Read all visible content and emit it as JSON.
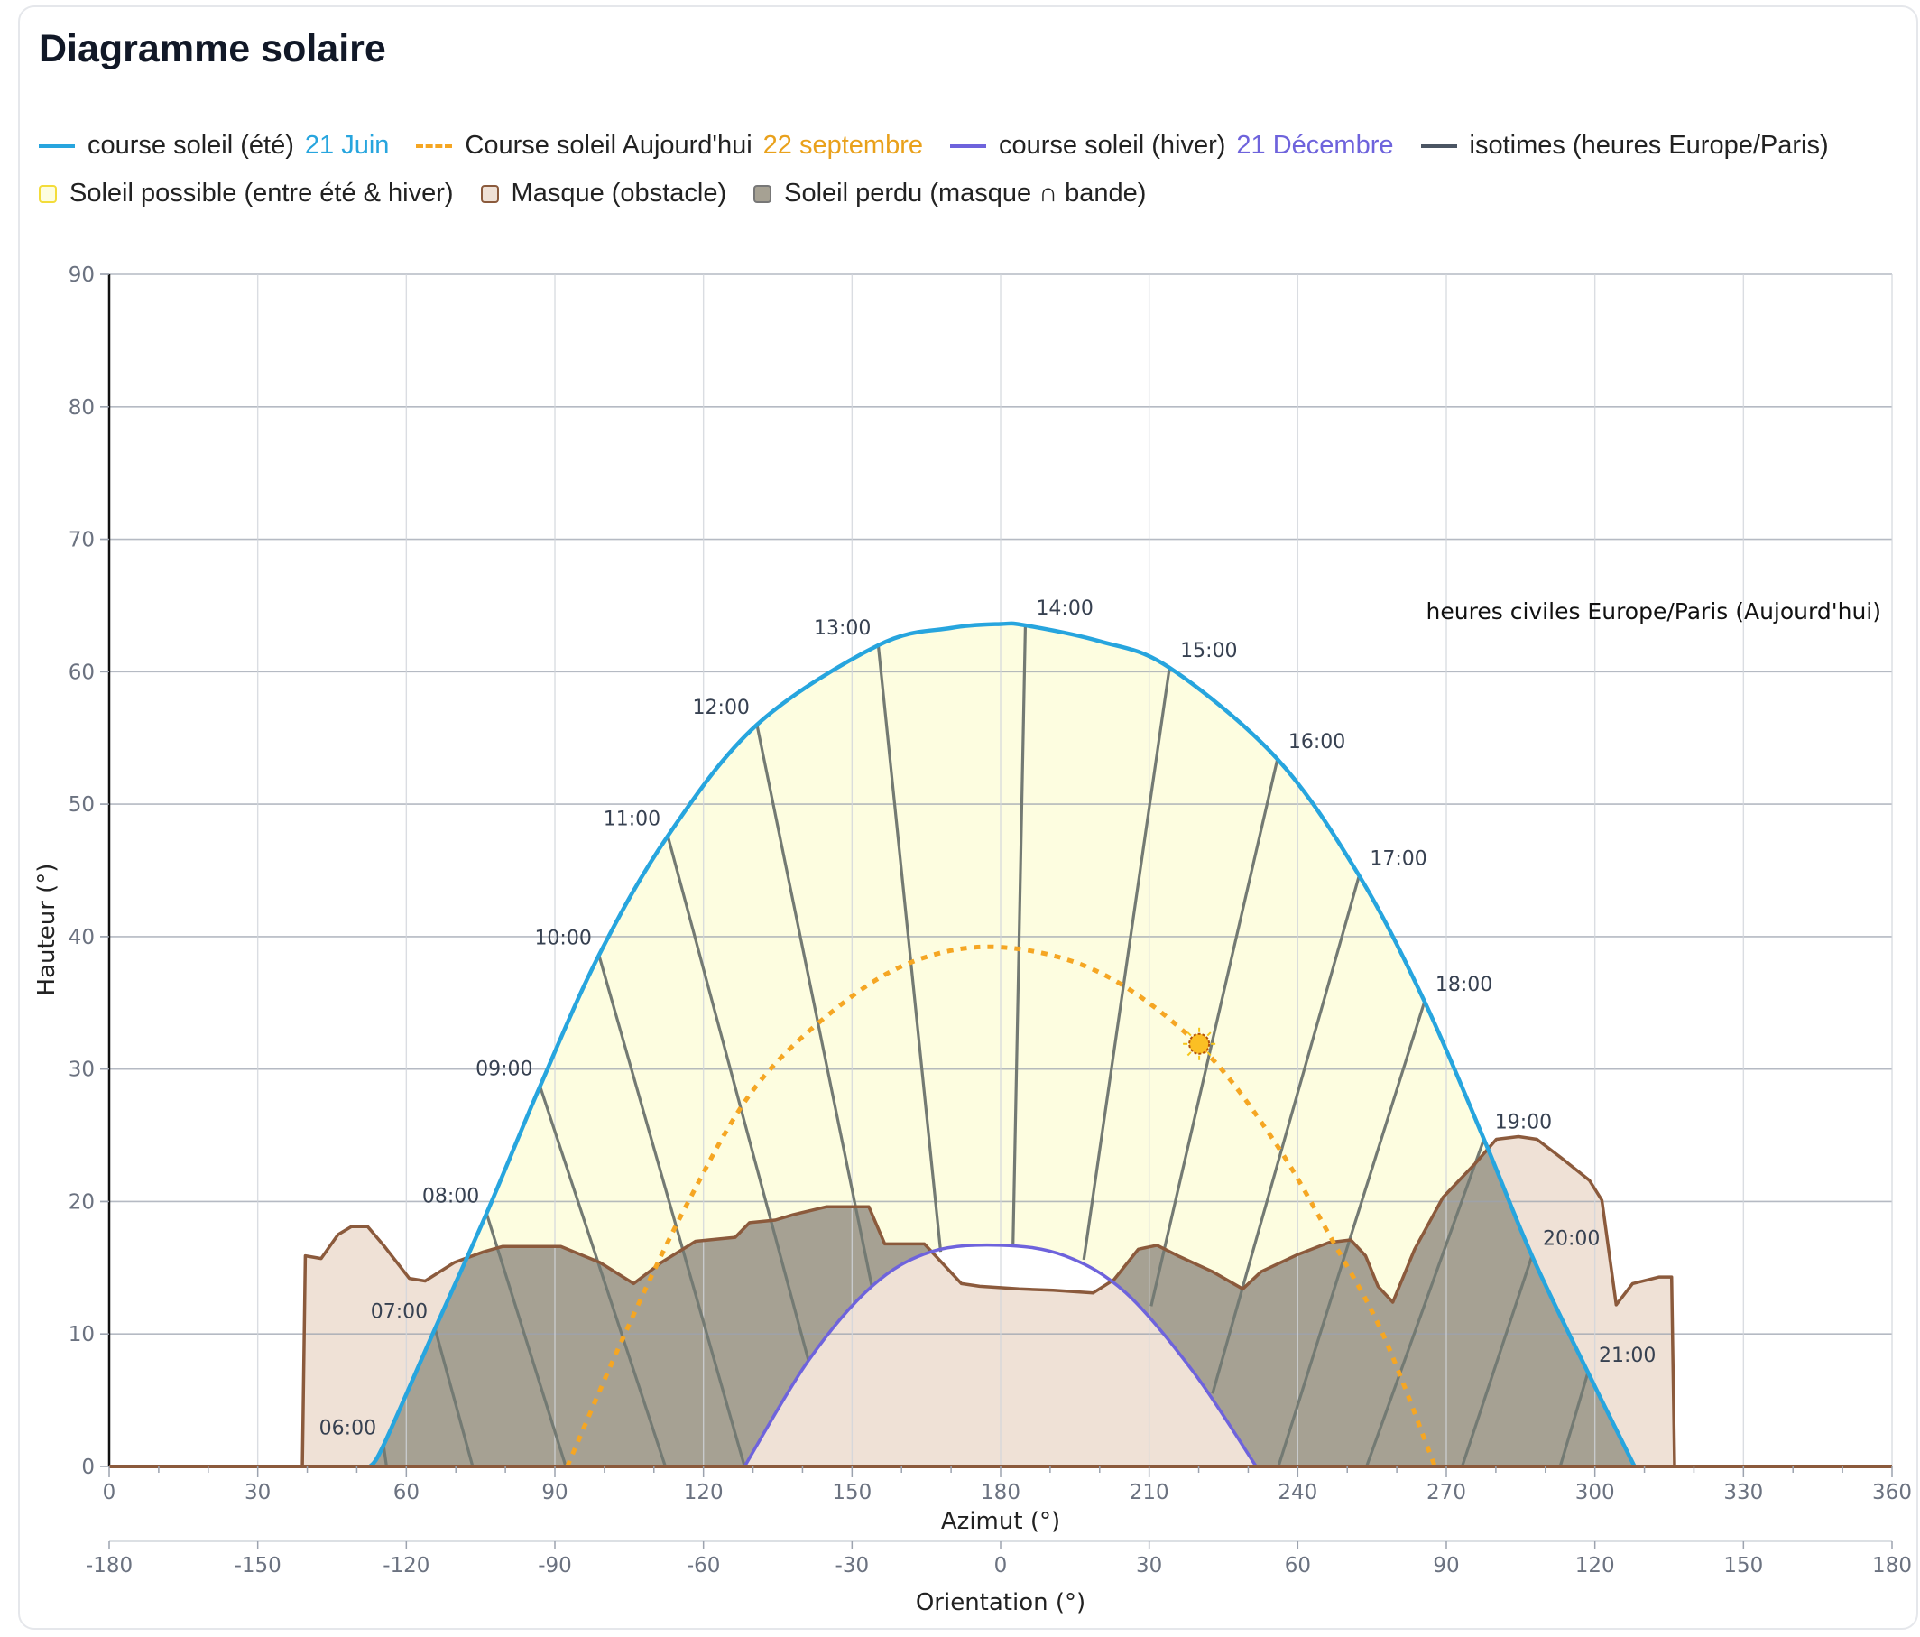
{
  "title": "Diagramme solaire",
  "legend": {
    "summer": {
      "label": "course soleil (été)",
      "date": "21 Juin",
      "color": "#27a5de"
    },
    "today": {
      "label": "Course soleil Aujourd'hui",
      "date": "22 septembre",
      "color": "#f5a623"
    },
    "winter": {
      "label": "course soleil (hiver)",
      "date": "21 Décembre",
      "color": "#6e63dc"
    },
    "isotimes": {
      "label": "isotimes (heures Europe/Paris)",
      "color": "#4b5563"
    },
    "band": {
      "label": "Soleil possible (entre été & hiver)",
      "color": "#fdfde0"
    },
    "mask": {
      "label": "Masque (obstacle)",
      "color": "#efe1d6"
    },
    "lost": {
      "label": "Soleil perdu (masque ∩ bande)",
      "color": "#a6a193"
    }
  },
  "chart_data": {
    "type": "line",
    "title": "Diagramme solaire",
    "xlabel": "Azimut (°)",
    "x2label": "Orientation (°)",
    "ylabel": "Hauteur (°)",
    "xlim": [
      0,
      360
    ],
    "x2lim": [
      -180,
      180
    ],
    "ylim": [
      0,
      90
    ],
    "xticks": [
      0,
      30,
      60,
      90,
      120,
      150,
      180,
      210,
      240,
      270,
      300,
      330,
      360
    ],
    "x2ticks": [
      -180,
      -150,
      -120,
      -90,
      -60,
      -30,
      0,
      30,
      60,
      90,
      120,
      150,
      180
    ],
    "yticks": [
      0,
      10,
      20,
      30,
      40,
      50,
      60,
      70,
      80,
      90
    ],
    "grid": true,
    "legend_position": "top",
    "annotation": "heures civiles Europe/Paris (Aujourd'hui)",
    "series": [
      {
        "name": "course soleil (été) 21 Juin",
        "points": [
          [
            52.7,
            0
          ],
          [
            55.4,
            1.6
          ],
          [
            65.8,
            10.4
          ],
          [
            76.2,
            19.1
          ],
          [
            87,
            28.7
          ],
          [
            98.9,
            38.6
          ],
          [
            112.8,
            47.6
          ],
          [
            130.8,
            56
          ],
          [
            155.3,
            62
          ],
          [
            170,
            63.3
          ],
          [
            180,
            63.6
          ],
          [
            185,
            63.5
          ],
          [
            200,
            62.3
          ],
          [
            214.1,
            60.3
          ],
          [
            235.9,
            53.4
          ],
          [
            252.4,
            44.6
          ],
          [
            265.6,
            35.1
          ],
          [
            277.6,
            24.7
          ],
          [
            287.3,
            15.9
          ],
          [
            298.6,
            7.1
          ],
          [
            308,
            0
          ]
        ]
      },
      {
        "name": "Course soleil Aujourd'hui 22 septembre",
        "points": [
          [
            92.5,
            0
          ],
          [
            104,
            9.9
          ],
          [
            116.4,
            19.6
          ],
          [
            130,
            28.4
          ],
          [
            146.2,
            34.4
          ],
          [
            162.2,
            38.1
          ],
          [
            180,
            39.2
          ],
          [
            200.5,
            37.2
          ],
          [
            220.3,
            31.7
          ],
          [
            235,
            24.7
          ],
          [
            247.4,
            16.8
          ],
          [
            257.3,
            9.9
          ],
          [
            267.7,
            0
          ]
        ]
      },
      {
        "name": "course soleil (hiver) 21 Décembre",
        "points": [
          [
            128.3,
            0
          ],
          [
            141.2,
            8
          ],
          [
            154,
            13.6
          ],
          [
            165.9,
            16.2
          ],
          [
            180,
            16.7
          ],
          [
            193,
            15.9
          ],
          [
            205.3,
            13.1
          ],
          [
            219,
            7.1
          ],
          [
            231.6,
            0
          ]
        ]
      },
      {
        "name": "Masque (obstacle)",
        "points": [
          [
            0,
            0
          ],
          [
            39,
            0
          ],
          [
            39.6,
            15.9
          ],
          [
            42.8,
            15.7
          ],
          [
            46.2,
            17.5
          ],
          [
            48.9,
            18.1
          ],
          [
            52.2,
            18.1
          ],
          [
            55.6,
            16.6
          ],
          [
            60.6,
            14.2
          ],
          [
            63.8,
            14
          ],
          [
            69.7,
            15.4
          ],
          [
            75.6,
            16.2
          ],
          [
            79.4,
            16.6
          ],
          [
            91.2,
            16.6
          ],
          [
            99.1,
            15.4
          ],
          [
            105.9,
            13.8
          ],
          [
            111.5,
            15.4
          ],
          [
            118.4,
            17
          ],
          [
            126.4,
            17.3
          ],
          [
            129.3,
            18.4
          ],
          [
            134.5,
            18.6
          ],
          [
            138.1,
            19
          ],
          [
            144.8,
            19.6
          ],
          [
            153.4,
            19.6
          ],
          [
            156.6,
            16.8
          ],
          [
            164.6,
            16.8
          ],
          [
            172.1,
            13.8
          ],
          [
            175.8,
            13.6
          ],
          [
            183.7,
            13.4
          ],
          [
            190.6,
            13.3
          ],
          [
            198.7,
            13.1
          ],
          [
            202.9,
            14.1
          ],
          [
            207.8,
            16.4
          ],
          [
            211.6,
            16.7
          ],
          [
            215.8,
            15.9
          ],
          [
            222.8,
            14.7
          ],
          [
            228.9,
            13.4
          ],
          [
            232.6,
            14.7
          ],
          [
            240,
            16
          ],
          [
            246.3,
            16.9
          ],
          [
            250.7,
            17.1
          ],
          [
            253.7,
            15.9
          ],
          [
            256.2,
            13.6
          ],
          [
            259.2,
            12.4
          ],
          [
            263.6,
            16.4
          ],
          [
            269.3,
            20.3
          ],
          [
            275.9,
            22.9
          ],
          [
            280.1,
            24.7
          ],
          [
            284.6,
            24.9
          ],
          [
            288.3,
            24.7
          ],
          [
            293.2,
            23.3
          ],
          [
            298.9,
            21.6
          ],
          [
            301.4,
            20.1
          ],
          [
            304.3,
            12.2
          ],
          [
            307.6,
            13.8
          ],
          [
            313,
            14.3
          ],
          [
            315.5,
            14.3
          ],
          [
            316.1,
            0
          ],
          [
            360,
            0
          ]
        ]
      }
    ],
    "isotimes": [
      {
        "label": "06:00",
        "from": [
          55.4,
          1.6
        ],
        "to": [
          56,
          0
        ]
      },
      {
        "label": "07:00",
        "from": [
          65.8,
          10.4
        ],
        "to": [
          73.4,
          0
        ]
      },
      {
        "label": "08:00",
        "from": [
          76.2,
          19.1
        ],
        "to": [
          92.2,
          0
        ]
      },
      {
        "label": "09:00",
        "from": [
          87,
          28.7
        ],
        "to": [
          112.3,
          0
        ]
      },
      {
        "label": "10:00",
        "from": [
          98.9,
          38.6
        ],
        "to": [
          128.3,
          0
        ]
      },
      {
        "label": "11:00",
        "from": [
          112.8,
          47.6
        ],
        "to": [
          141.2,
          8
        ]
      },
      {
        "label": "12:00",
        "from": [
          130.8,
          56
        ],
        "to": [
          154,
          13.6
        ]
      },
      {
        "label": "13:00",
        "from": [
          155.3,
          62
        ],
        "to": [
          167.9,
          16.2
        ]
      },
      {
        "label": "14:00",
        "from": [
          185,
          63.5
        ],
        "to": [
          182.5,
          16.7
        ]
      },
      {
        "label": "15:00",
        "from": [
          214.1,
          60.3
        ],
        "to": [
          196.8,
          15.6
        ]
      },
      {
        "label": "16:00",
        "from": [
          235.9,
          53.4
        ],
        "to": [
          210.4,
          12.1
        ]
      },
      {
        "label": "17:00",
        "from": [
          252.4,
          44.6
        ],
        "to": [
          222.8,
          5.5
        ]
      },
      {
        "label": "18:00",
        "from": [
          265.6,
          35.1
        ],
        "to": [
          236.1,
          0
        ]
      },
      {
        "label": "19:00",
        "from": [
          277.6,
          24.7
        ],
        "to": [
          253.9,
          0
        ]
      },
      {
        "label": "20:00",
        "from": [
          287.3,
          15.9
        ],
        "to": [
          273.2,
          0
        ]
      },
      {
        "label": "21:00",
        "from": [
          298.6,
          7.1
        ],
        "to": [
          293,
          0
        ]
      }
    ],
    "current_sun": [
      220.1,
      31.9
    ]
  }
}
